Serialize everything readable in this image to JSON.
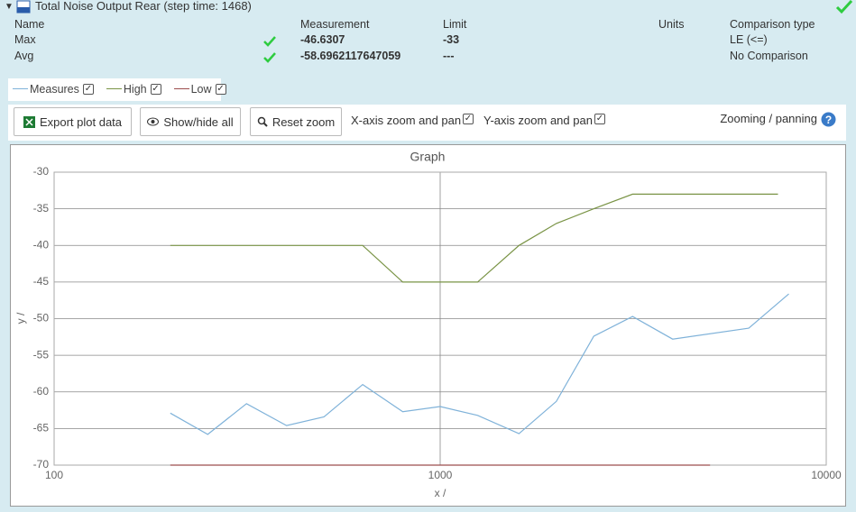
{
  "header": {
    "title": "Total Noise Output Rear (step time: 1468)"
  },
  "table": {
    "columns": [
      "Name",
      "Measurement",
      "Limit",
      "Units",
      "Comparison type"
    ],
    "rows": [
      {
        "name": "Max",
        "measurement": "-46.6307",
        "limit": "-33",
        "comparison": "LE (<=)"
      },
      {
        "name": "Avg",
        "measurement": "-58.6962117647059",
        "limit": "---",
        "comparison": "No Comparison"
      }
    ]
  },
  "toolbar": {
    "export": "Export plot data",
    "show_hide": "Show/hide all",
    "reset_zoom": "Reset zoom",
    "x_zoom": "X-axis zoom and pan",
    "y_zoom": "Y-axis zoom and pan",
    "help": "Zooming / panning"
  },
  "chart_data": {
    "type": "line",
    "title": "Graph",
    "xlabel": "x /",
    "ylabel": "y /",
    "xscale": "log",
    "xlim": [
      100,
      10000
    ],
    "xticks": [
      100,
      1000,
      10000
    ],
    "ylim": [
      -70,
      -30
    ],
    "yticks": [
      -30,
      -35,
      -40,
      -45,
      -50,
      -55,
      -60,
      -65,
      -70
    ],
    "grid": true,
    "series": [
      {
        "name": "Measures",
        "color": "#7fb2d9",
        "x": [
          200,
          250,
          315,
          400,
          500,
          630,
          800,
          1000,
          1250,
          1600,
          2000,
          2500,
          3150,
          4000,
          6300,
          8000
        ],
        "values": [
          -62.9,
          -65.8,
          -61.6,
          -64.6,
          -63.4,
          -59.0,
          -62.7,
          -62.0,
          -63.2,
          -65.7,
          -61.3,
          -52.4,
          -49.7,
          -52.8,
          -51.3,
          -46.63
        ]
      },
      {
        "name": "High",
        "color": "#7a9446",
        "x": [
          200,
          630,
          800,
          1250,
          1600,
          2000,
          2500,
          3150,
          7500
        ],
        "values": [
          -40,
          -40,
          -45,
          -45,
          -40,
          -37,
          -35,
          -33,
          -33
        ]
      },
      {
        "name": "Low",
        "color": "#9c4d4d",
        "x": [
          200,
          5000
        ],
        "values": [
          -70,
          -70
        ]
      }
    ]
  }
}
